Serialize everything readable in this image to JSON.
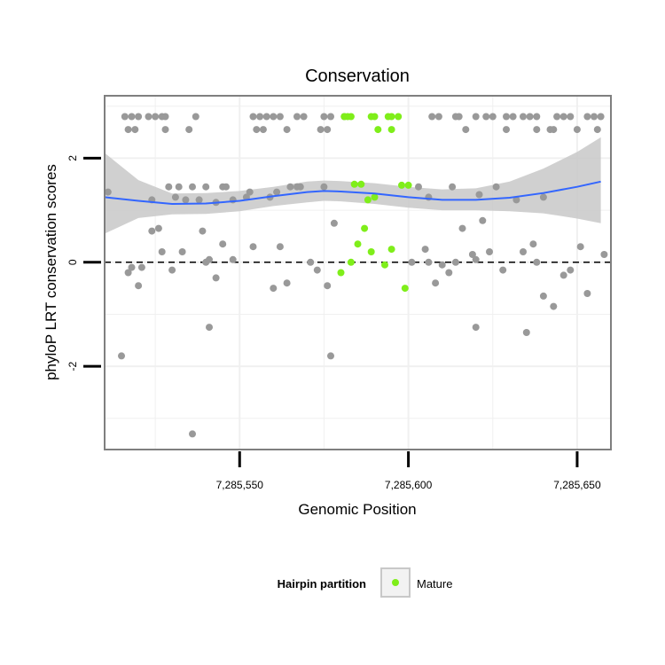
{
  "chart_data": {
    "type": "scatter",
    "title": "Conservation",
    "xlabel": "Genomic Position",
    "ylabel": "phyloP LRT conservation scores",
    "xlim": [
      7285510,
      7285660
    ],
    "ylim": [
      -3.6,
      3.2
    ],
    "x_ticks": [
      7285550,
      7285600,
      7285650
    ],
    "x_tick_labels": [
      "7,285,550",
      "7,285,600",
      "7,285,650"
    ],
    "y_ticks": [
      -2,
      0,
      2
    ],
    "y_tick_labels": [
      "-2",
      "0",
      "2"
    ],
    "grid": true,
    "reference_line": {
      "y": 0,
      "style": "dashed",
      "color": "#000000"
    },
    "colors": {
      "background": "#ffffff",
      "grid": "#f0f0f0",
      "panel_border": "#7f7f7f",
      "other_points": "#999999",
      "mature_points": "#7fee1a",
      "smooth_line": "#3366ff",
      "confidence_band": "#c8c8c8"
    },
    "legend": {
      "title": "Hairpin partition",
      "position": "bottom",
      "entries": [
        {
          "label": "Mature",
          "color": "#7fee1a"
        }
      ]
    },
    "series": [
      {
        "name": "",
        "color": "#999999",
        "x": [
          7285516,
          7285518,
          7285520,
          7285523,
          7285525,
          7285527,
          7285528,
          7285537,
          7285554,
          7285556,
          7285558,
          7285560,
          7285562,
          7285567,
          7285569,
          7285575,
          7285577,
          7285581,
          7285607,
          7285609,
          7285614,
          7285615,
          7285620,
          7285623,
          7285625,
          7285629,
          7285631,
          7285634,
          7285636,
          7285638,
          7285644,
          7285646,
          7285648,
          7285653,
          7285655,
          7285657,
          7285517,
          7285519,
          7285528,
          7285535,
          7285555,
          7285557,
          7285564,
          7285574,
          7285576,
          7285617,
          7285629,
          7285638,
          7285642,
          7285643,
          7285650,
          7285656,
          7285511,
          7285524,
          7285529,
          7285531,
          7285532,
          7285534,
          7285536,
          7285538,
          7285540,
          7285543,
          7285545,
          7285546,
          7285548,
          7285552,
          7285553,
          7285559,
          7285561,
          7285565,
          7285567,
          7285568,
          7285575,
          7285603,
          7285606,
          7285613,
          7285616,
          7285621,
          7285626,
          7285632,
          7285640,
          7285526,
          7285517,
          7285518,
          7285520,
          7285521,
          7285524,
          7285527,
          7285530,
          7285533,
          7285539,
          7285540,
          7285541,
          7285543,
          7285545,
          7285548,
          7285554,
          7285560,
          7285562,
          7285564,
          7285571,
          7285573,
          7285576,
          7285578,
          7285601,
          7285605,
          7285606,
          7285608,
          7285610,
          7285612,
          7285614,
          7285619,
          7285620,
          7285622,
          7285624,
          7285628,
          7285634,
          7285637,
          7285638,
          7285640,
          7285643,
          7285646,
          7285648,
          7285651,
          7285653,
          7285658,
          7285515,
          7285536,
          7285541,
          7285577,
          7285620,
          7285635
        ],
        "y": [
          2.8,
          2.8,
          2.8,
          2.8,
          2.8,
          2.8,
          2.8,
          2.8,
          2.8,
          2.8,
          2.8,
          2.8,
          2.8,
          2.8,
          2.8,
          2.8,
          2.8,
          2.8,
          2.8,
          2.8,
          2.8,
          2.8,
          2.8,
          2.8,
          2.8,
          2.8,
          2.8,
          2.8,
          2.8,
          2.8,
          2.8,
          2.8,
          2.8,
          2.8,
          2.8,
          2.8,
          2.55,
          2.55,
          2.55,
          2.55,
          2.55,
          2.55,
          2.55,
          2.55,
          2.55,
          2.55,
          2.55,
          2.55,
          2.55,
          2.55,
          2.55,
          2.55,
          1.35,
          1.2,
          1.45,
          1.25,
          1.45,
          1.2,
          1.45,
          1.2,
          1.45,
          1.15,
          1.45,
          1.45,
          1.2,
          1.25,
          1.35,
          1.25,
          1.35,
          1.45,
          1.45,
          1.45,
          1.45,
          1.45,
          1.25,
          1.45,
          0.65,
          1.3,
          1.45,
          1.2,
          1.25,
          0.65,
          -0.2,
          -0.1,
          -0.45,
          -0.1,
          0.6,
          0.2,
          -0.15,
          0.2,
          0.6,
          0.0,
          0.05,
          -0.3,
          0.35,
          0.05,
          0.3,
          -0.5,
          0.3,
          -0.4,
          0.0,
          -0.15,
          -0.45,
          0.75,
          0.0,
          0.25,
          0.0,
          -0.4,
          -0.05,
          -0.2,
          0.0,
          0.15,
          0.05,
          0.8,
          0.2,
          -0.15,
          0.2,
          0.35,
          0.0,
          -0.65,
          -0.85,
          -0.25,
          -0.15,
          0.3,
          -0.6,
          0.15,
          -1.8,
          -3.3,
          -1.25,
          -1.8,
          -1.25,
          -1.35
        ]
      },
      {
        "name": "Mature",
        "color": "#7fee1a",
        "x": [
          7285581,
          7285582,
          7285583,
          7285589,
          7285590,
          7285594,
          7285595,
          7285597,
          7285591,
          7285595,
          7285584,
          7285586,
          7285588,
          7285590,
          7285598,
          7285600,
          7285580,
          7285583,
          7285585,
          7285587,
          7285589,
          7285593,
          7285595,
          7285599
        ],
        "y": [
          2.8,
          2.8,
          2.8,
          2.8,
          2.8,
          2.8,
          2.8,
          2.8,
          2.55,
          2.55,
          1.5,
          1.5,
          1.2,
          1.25,
          1.48,
          1.48,
          -0.2,
          0.0,
          0.35,
          0.65,
          0.2,
          -0.05,
          0.25,
          -0.5
        ]
      }
    ],
    "smooth": {
      "x": [
        7285510,
        7285520,
        7285530,
        7285540,
        7285550,
        7285560,
        7285570,
        7285575,
        7285580,
        7285590,
        7285600,
        7285610,
        7285620,
        7285630,
        7285640,
        7285650,
        7285657
      ],
      "y": [
        1.25,
        1.18,
        1.12,
        1.13,
        1.18,
        1.27,
        1.35,
        1.37,
        1.36,
        1.32,
        1.25,
        1.2,
        1.2,
        1.24,
        1.33,
        1.45,
        1.55
      ],
      "lower": [
        0.55,
        0.85,
        0.92,
        0.93,
        0.98,
        1.08,
        1.15,
        1.18,
        1.17,
        1.12,
        1.05,
        1.0,
        1.0,
        0.98,
        0.94,
        0.84,
        0.75
      ],
      "upper": [
        2.1,
        1.58,
        1.32,
        1.33,
        1.37,
        1.45,
        1.55,
        1.57,
        1.56,
        1.52,
        1.45,
        1.4,
        1.42,
        1.55,
        1.8,
        2.12,
        2.4
      ]
    }
  }
}
